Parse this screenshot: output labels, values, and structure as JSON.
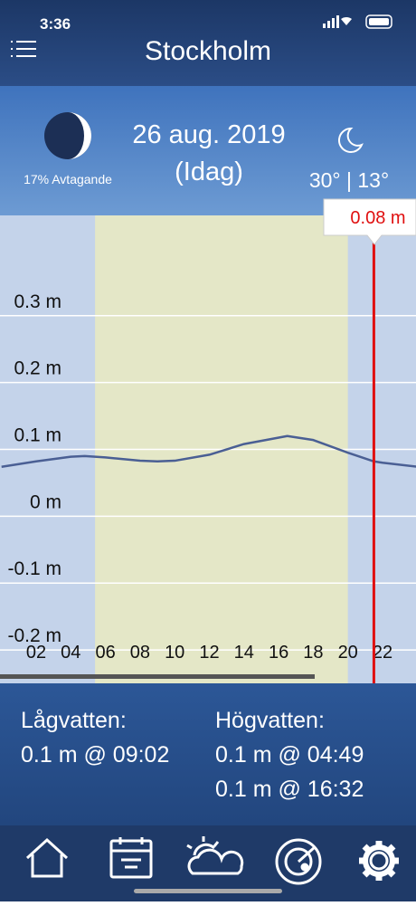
{
  "status_bar": {
    "time": "3:36"
  },
  "header": {
    "title": "Stockholm"
  },
  "info": {
    "moon_phase": "17% Avtagande",
    "date": "26 aug. 2019",
    "day": "(Idag)",
    "temperature": "30° | 13°"
  },
  "tide_chart": {
    "type": "line",
    "xlim": [
      0,
      24
    ],
    "ylim": [
      -0.25,
      0.45
    ],
    "yticks": [
      {
        "value": 0.3,
        "label": "0.3 m"
      },
      {
        "value": 0.2,
        "label": "0.2 m"
      },
      {
        "value": 0.1,
        "label": "0.1 m"
      },
      {
        "value": 0,
        "label": "0 m"
      },
      {
        "value": -0.1,
        "label": "-0.1 m"
      },
      {
        "value": -0.2,
        "label": "-0.2 m"
      }
    ],
    "xticks": [
      {
        "value": 2,
        "label": "02"
      },
      {
        "value": 4,
        "label": "04"
      },
      {
        "value": 6,
        "label": "06"
      },
      {
        "value": 8,
        "label": "08"
      },
      {
        "value": 10,
        "label": "10"
      },
      {
        "value": 12,
        "label": "12"
      },
      {
        "value": 14,
        "label": "14"
      },
      {
        "value": 16,
        "label": "16"
      },
      {
        "value": 18,
        "label": "18"
      },
      {
        "value": 20,
        "label": "20"
      },
      {
        "value": 22,
        "label": "22"
      }
    ],
    "daylight": [
      5.4,
      20.0
    ],
    "x": [
      0,
      2,
      4,
      4.8,
      6,
      8,
      9,
      10,
      12,
      14,
      16.5,
      18,
      20,
      21.5,
      22,
      24
    ],
    "values": [
      0.074,
      0.082,
      0.089,
      0.09,
      0.088,
      0.083,
      0.082,
      0.083,
      0.092,
      0.108,
      0.12,
      0.114,
      0.095,
      0.082,
      0.08,
      0.074
    ],
    "color": "#4a5f94",
    "grid": true,
    "cursor": {
      "x": 21.5,
      "value": 0.08,
      "label": "0.08 m",
      "color": "#e01010"
    }
  },
  "tides": {
    "low_title": "Lågvatten:",
    "low": [
      "0.1 m @ 09:02"
    ],
    "high_title": "Högvatten:",
    "high": [
      "0.1 m @ 04:49",
      "0.1 m @ 16:32"
    ]
  }
}
